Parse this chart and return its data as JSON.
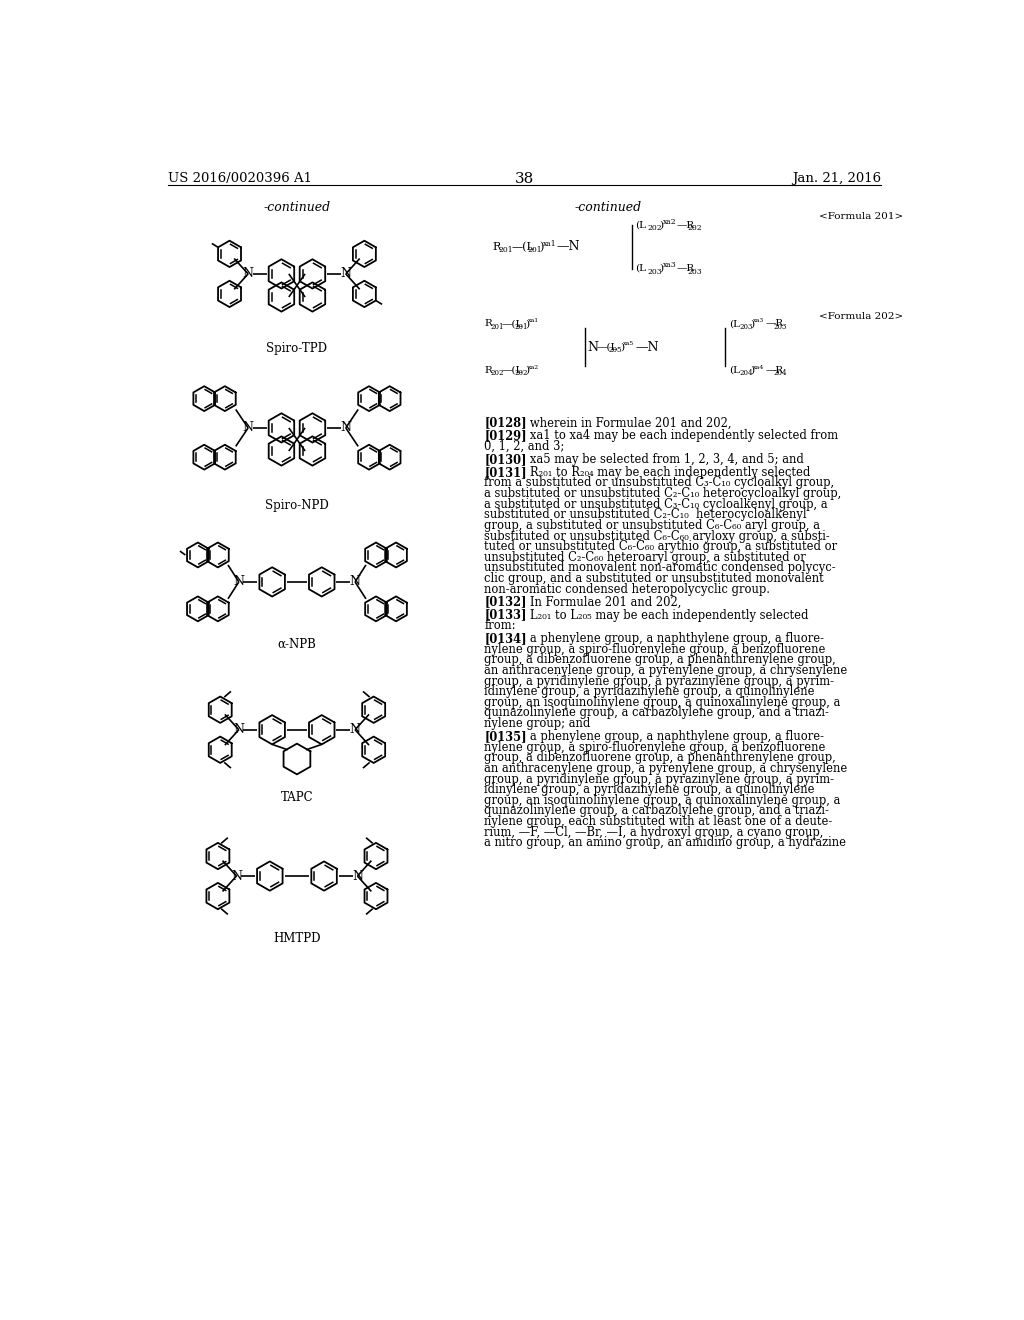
{
  "page_number": "38",
  "patent_number": "US 2016/0020396 A1",
  "patent_date": "Jan. 21, 2016",
  "bg": "#ffffff",
  "left_continued": "-continued",
  "right_continued": "-continued",
  "formula201_label": "<Formula 201>",
  "formula202_label": "<Formula 202>",
  "compound_labels": [
    "Spiro-TPD",
    "Spiro-NPD",
    "α-NPB",
    "TAPC",
    "HMTPD"
  ],
  "paragraphs": [
    {
      "ref": "[0128]",
      "body": "wherein in Formulae 201 and 202,"
    },
    {
      "ref": "[0129]",
      "body": "xa1 to xa4 may be each independently selected from\n0, 1, 2, and 3;"
    },
    {
      "ref": "[0130]",
      "body": "xa5 may be selected from 1, 2, 3, 4, and 5; and"
    },
    {
      "ref": "[0131]",
      "body": "R₂₀₁ to R₂₀₄ may be each independently selected\nfrom a substituted or unsubstituted C₃-C₁₀ cycloalkyl group,\na substituted or unsubstituted C₂-C₁₀ heterocycloalkyl group,\na substituted or unsubstituted C₃-C₁₀ cycloalkenyl group, a\nsubstituted or unsubstituted C₂-C₁₀  heterocycloalkenyl\ngroup, a substituted or unsubstituted C₆-C₆₀ aryl group, a\nsubstituted or unsubstituted C₆-C₆₀ aryloxy group, a substi-\ntuted or unsubstituted C₆-C₆₀ arythio group, a substituted or\nunsubstituted C₂-C₆₀ heteroaryl group, a substituted or\nunsubstituted monovalent non-aromatic condensed polycyc-\nclic group, and a substituted or unsubstituted monovalent\nnon-aromatic condensed heteropolycyclic group."
    },
    {
      "ref": "[0132]",
      "body": "In Formulae 201 and 202,"
    },
    {
      "ref": "[0133]",
      "body": "L₂₀₁ to L₂₀₅ may be each independently selected\nfrom:"
    },
    {
      "ref": "[0134]",
      "body": "a phenylene group, a naphthylene group, a fluore-\nnylene group, a spiro-fluorenylene group, a benzofluorene\ngroup, a dibenzofluorene group, a phenanthrenylene group,\nan anthracenylene group, a pyrenylene group, a chrysenylene\ngroup, a pyridinylene group, a pyrazinylene group, a pyrim-\nidinylene group, a pyridazinylene group, a quinolinylene\ngroup, an isoquinolinylene group, a quinoxalinylene group, a\nquinazolinylene group, a carbazolylene group, and a triazi-\nnylene group; and"
    },
    {
      "ref": "[0135]",
      "body": "a phenylene group, a naphthylene group, a fluore-\nnylene group, a spiro-fluorenylene group, a benzofluorene\ngroup, a dibenzofluorene group, a phenanthrenylene group,\nan anthracenylene group, a pyrenylene group, a chrysenylene\ngroup, a pyridinylene group, a pyrazinylene group, a pyrim-\nidinylene group, a pyridazinylene group, a quinolinylene\ngroup, an isoquinolinylene group, a quinoxalinylene group, a\nquinazolinylene group, a carbazolylene group, and a triazi-\nnylene group, each substituted with at least one of a deute-\nrium, —F, —Cl, —Br, —I, a hydroxyl group, a cyano group,\na nitro group, an amino group, an amidino group, a hydrazine"
    }
  ]
}
